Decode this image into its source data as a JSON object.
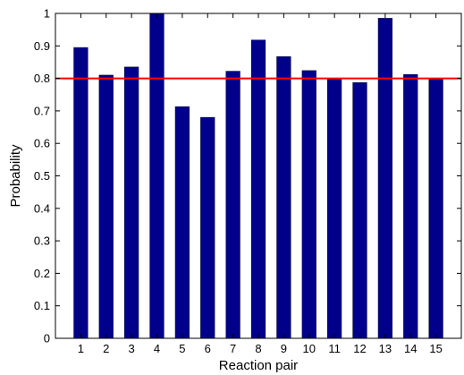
{
  "chart_data": {
    "type": "bar",
    "categories": [
      "1",
      "2",
      "3",
      "4",
      "5",
      "6",
      "7",
      "8",
      "9",
      "10",
      "11",
      "12",
      "13",
      "14",
      "15"
    ],
    "values": [
      0.895,
      0.81,
      0.835,
      1.0,
      0.713,
      0.68,
      0.822,
      0.918,
      0.867,
      0.824,
      0.8,
      0.787,
      0.985,
      0.812,
      0.8
    ],
    "xlabel": "Reaction pair",
    "ylabel": "Probability",
    "ylim": [
      0,
      1
    ],
    "yticks": [
      "0",
      "0.1",
      "0.2",
      "0.3",
      "0.4",
      "0.5",
      "0.6",
      "0.7",
      "0.8",
      "0.9",
      "1"
    ],
    "threshold": 0.8,
    "grid": false,
    "colors": {
      "bar": "#00008b",
      "bar_edge": "#000040",
      "threshold": "#ff0000",
      "axis": "#000000"
    }
  }
}
